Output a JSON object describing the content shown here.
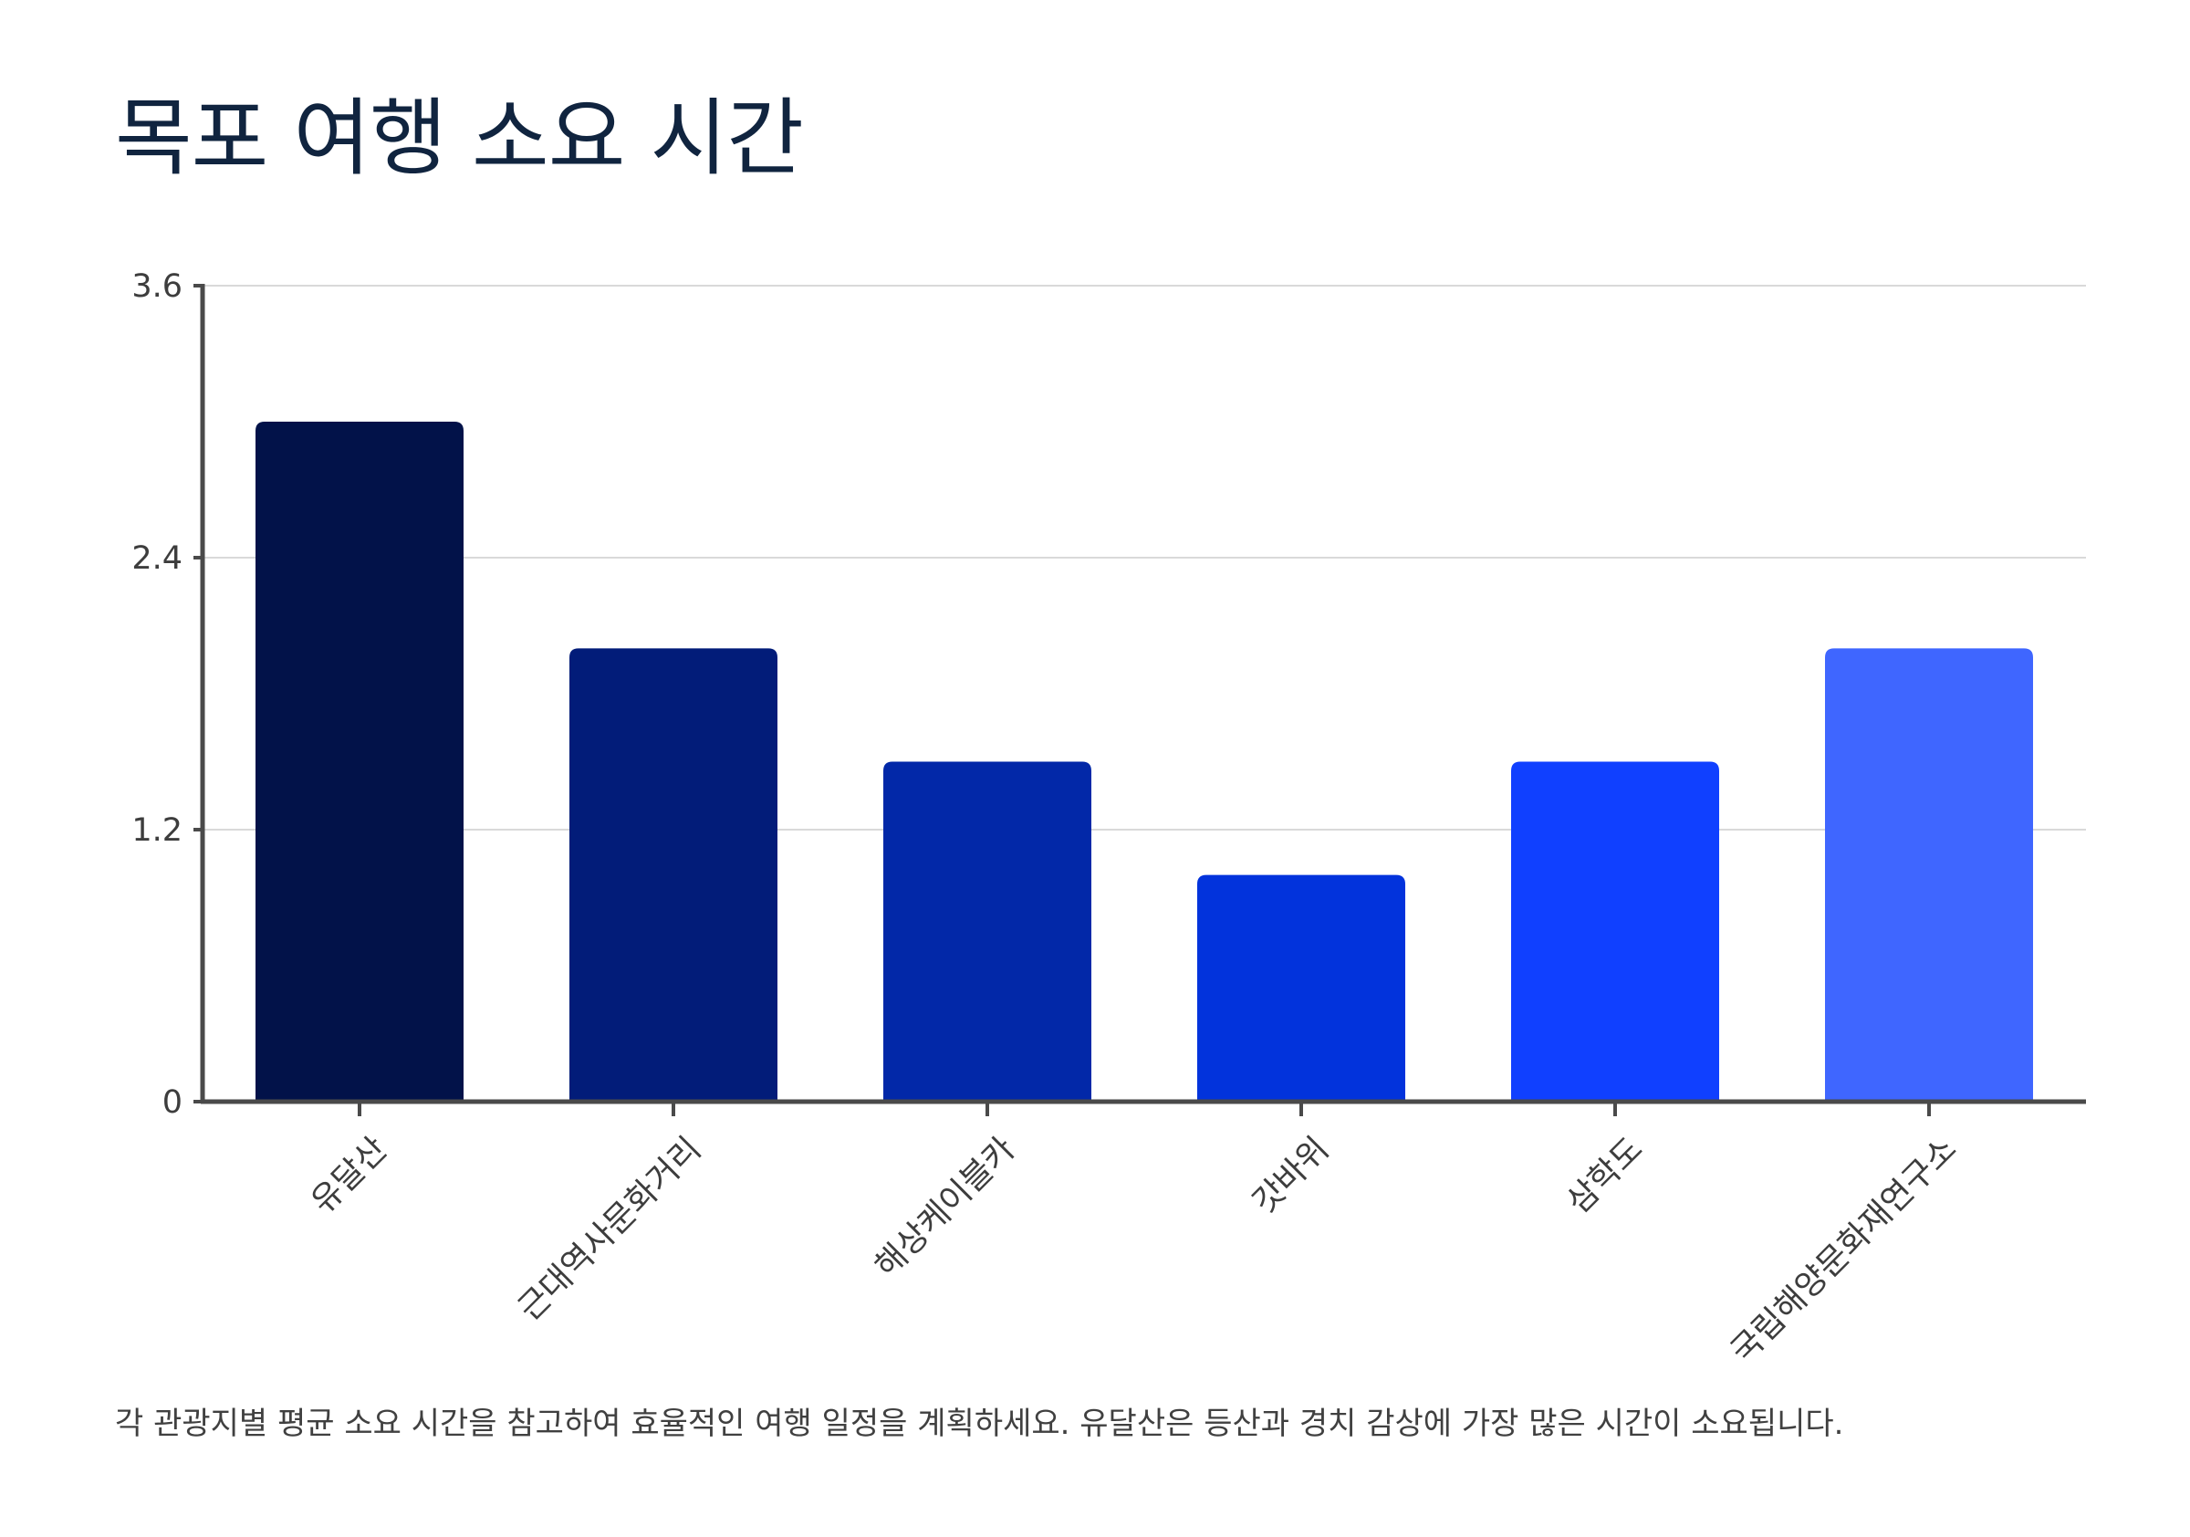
{
  "page": {
    "title": "목포 여행 소요 시간",
    "footnote": "각 관광지별 평균 소요 시간을 참고하여 효율적인 여행 일정을 계획하세요. 유달산은 등산과 경치 감상에 가장 많은 시간이 소요됩니다."
  },
  "colors": {
    "title": "#10243f",
    "axis": "#4a4a4a",
    "grid": "#d9d9d9",
    "text": "#3d3d3d"
  },
  "chart_data": {
    "type": "bar",
    "title": "목포 여행 소요 시간",
    "xlabel": "",
    "ylabel": "",
    "ylim": [
      0,
      3.6
    ],
    "yticks": [
      0,
      1.2,
      2.4,
      3.6
    ],
    "ytick_labels": [
      "0",
      "1.2",
      "2.4",
      "3.6"
    ],
    "grid": true,
    "legend": "none",
    "categories": [
      "유달산",
      "근대역사문화거리",
      "해상케이블카",
      "갓바위",
      "삼학도",
      "국립해양문화재연구소"
    ],
    "values": [
      3.0,
      2.0,
      1.5,
      1.0,
      1.5,
      2.0
    ],
    "bar_colors": [
      "#021249",
      "#021c79",
      "#0228a8",
      "#0233dc",
      "#1040ff",
      "#3f66ff"
    ]
  }
}
